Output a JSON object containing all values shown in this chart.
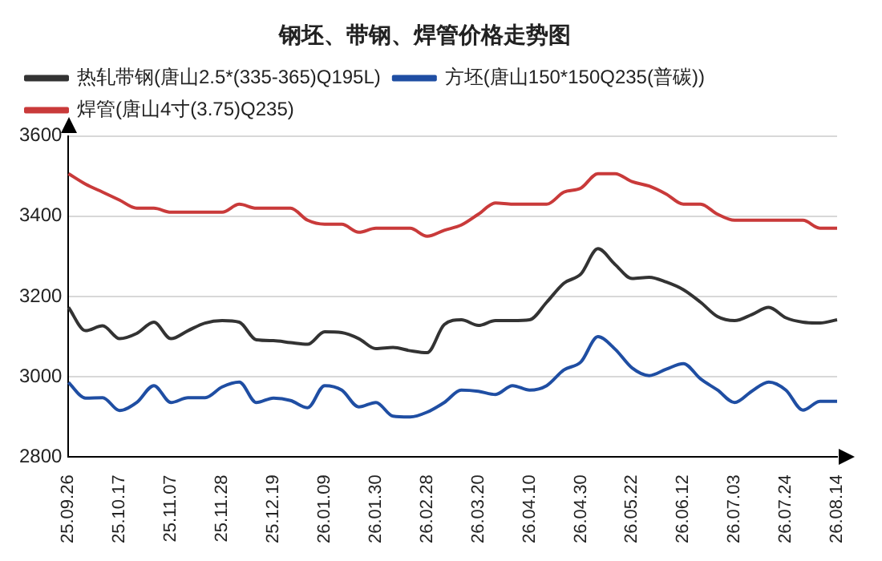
{
  "chart_data": {
    "type": "line",
    "title": "钢坯、带钢、焊管价格走势图",
    "categories": [
      "25.09.26",
      null,
      null,
      "25.10.17",
      null,
      null,
      "25.11.07",
      null,
      null,
      "25.11.28",
      null,
      null,
      "25.12.19",
      null,
      null,
      "26.01.09",
      null,
      null,
      "26.01.30",
      null,
      null,
      "26.02.28",
      null,
      null,
      "26.03.20",
      null,
      null,
      "26.04.10",
      null,
      null,
      "26.04.30",
      null,
      null,
      "26.05.22",
      null,
      null,
      "26.06.12",
      null,
      null,
      "26.07.03",
      null,
      null,
      "26.07.24",
      null,
      null,
      "26.08.14"
    ],
    "series": [
      {
        "name": "热轧带钢(唐山2.5*(335-365)Q195L)",
        "color": "#333333",
        "values": [
          3173,
          3115,
          3127,
          3095,
          3108,
          3136,
          3095,
          3115,
          3134,
          3140,
          3136,
          3092,
          3090,
          3085,
          3081,
          3112,
          3110,
          3095,
          3070,
          3073,
          3065,
          3060,
          3130,
          3142,
          3128,
          3140,
          3140,
          3142,
          3186,
          3233,
          3256,
          3319,
          3280,
          3245,
          3248,
          3236,
          3217,
          3186,
          3150,
          3140,
          3155,
          3173,
          3147,
          3136,
          3134,
          3142
        ]
      },
      {
        "name": "方坯(唐山150*150Q235(普碳))",
        "color": "#1f4ea3",
        "values": [
          2986,
          2947,
          2948,
          2916,
          2936,
          2978,
          2936,
          2948,
          2948,
          2975,
          2987,
          2936,
          2947,
          2941,
          2923,
          2978,
          2967,
          2925,
          2936,
          2902,
          2900,
          2912,
          2936,
          2967,
          2964,
          2956,
          2978,
          2967,
          2978,
          3017,
          3037,
          3100,
          3069,
          3022,
          3003,
          3019,
          3033,
          2995,
          2967,
          2936,
          2964,
          2987,
          2967,
          2917,
          2939,
          2939
        ]
      },
      {
        "name": "焊管(唐山4寸(3.75)Q235)",
        "color": "#c93a3a",
        "values": [
          3506,
          3480,
          3460,
          3440,
          3420,
          3420,
          3410,
          3410,
          3410,
          3410,
          3430,
          3420,
          3420,
          3420,
          3390,
          3380,
          3380,
          3360,
          3370,
          3370,
          3370,
          3350,
          3365,
          3378,
          3405,
          3433,
          3430,
          3430,
          3430,
          3460,
          3470,
          3506,
          3506,
          3486,
          3475,
          3455,
          3430,
          3430,
          3405,
          3390,
          3390,
          3390,
          3390,
          3390,
          3370,
          3370
        ]
      }
    ],
    "ylim": [
      2800,
      3600
    ],
    "yticks": [
      2800,
      3000,
      3200,
      3400,
      3600
    ],
    "grid": "y",
    "legend": "top",
    "marker": "none",
    "line_style": "solid"
  }
}
